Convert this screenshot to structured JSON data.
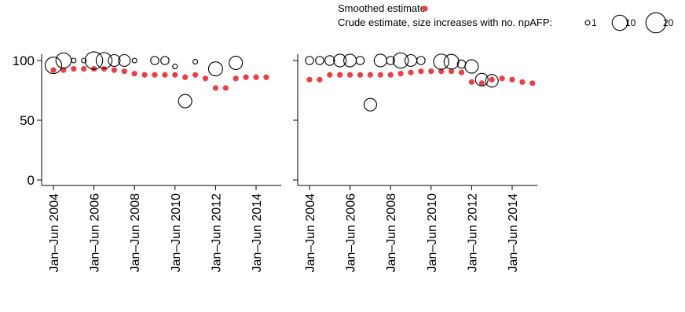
{
  "legend": {
    "smoothed_label": "Smoothed estimate",
    "crude_label": "Crude estimate, size increases with no. npAFP:",
    "size_labels": [
      "1",
      "10",
      "20"
    ],
    "size_values": [
      1,
      10,
      20
    ]
  },
  "colors": {
    "smoothed": "#ef3e42",
    "crude_stroke": "#000000"
  },
  "chart_data": [
    {
      "type": "scatter",
      "panel": "left",
      "x_tick_labels": [
        "Jan–Jun 2004",
        "Jan–Jun 2006",
        "Jan–Jun 2008",
        "Jan–Jun 2010",
        "Jan–Jun 2012",
        "Jan–Jun 2014"
      ],
      "y_tick_labels": [
        "0",
        "50",
        "100"
      ],
      "ylim": [
        0,
        100
      ],
      "xlim": [
        "Jan–Jun 2004",
        "Jul–Dec 2014"
      ],
      "grid": false,
      "series": [
        {
          "name": "Smoothed estimate",
          "points": [
            {
              "x": "Jan–Jun 2004",
              "y": 92
            },
            {
              "x": "Jul–Dec 2004",
              "y": 92
            },
            {
              "x": "Jan–Jun 2005",
              "y": 93
            },
            {
              "x": "Jul–Dec 2005",
              "y": 93
            },
            {
              "x": "Jan–Jun 2006",
              "y": 93
            },
            {
              "x": "Jul–Dec 2006",
              "y": 93
            },
            {
              "x": "Jan–Jun 2007",
              "y": 92
            },
            {
              "x": "Jul–Dec 2007",
              "y": 91
            },
            {
              "x": "Jan–Jun 2008",
              "y": 89
            },
            {
              "x": "Jul–Dec 2008",
              "y": 88
            },
            {
              "x": "Jan–Jun 2009",
              "y": 88
            },
            {
              "x": "Jul–Dec 2009",
              "y": 88
            },
            {
              "x": "Jan–Jun 2010",
              "y": 88
            },
            {
              "x": "Jul–Dec 2010",
              "y": 86
            },
            {
              "x": "Jan–Jun 2011",
              "y": 88
            },
            {
              "x": "Jul–Dec 2011",
              "y": 85
            },
            {
              "x": "Jan–Jun 2012",
              "y": 77
            },
            {
              "x": "Jul–Dec 2012",
              "y": 77
            },
            {
              "x": "Jan–Jun 2013",
              "y": 85
            },
            {
              "x": "Jul–Dec 2013",
              "y": 86
            },
            {
              "x": "Jan–Jun 2014",
              "y": 86
            },
            {
              "x": "Jul–Dec 2014",
              "y": 86
            }
          ]
        },
        {
          "name": "Crude estimate",
          "points": [
            {
              "x": "Jan–Jun 2004",
              "y": 96,
              "n": 12
            },
            {
              "x": "Jul–Dec 2004",
              "y": 100,
              "n": 10
            },
            {
              "x": "Jan–Jun 2005",
              "y": 100,
              "n": 1
            },
            {
              "x": "Jul–Dec 2005",
              "y": 100,
              "n": 1
            },
            {
              "x": "Jan–Jun 2006",
              "y": 100,
              "n": 14
            },
            {
              "x": "Jul–Dec 2006",
              "y": 100,
              "n": 11
            },
            {
              "x": "Jan–Jun 2007",
              "y": 100,
              "n": 5
            },
            {
              "x": "Jul–Dec 2007",
              "y": 100,
              "n": 5
            },
            {
              "x": "Jan–Jun 2008",
              "y": 100,
              "n": 1
            },
            {
              "x": "Jan–Jun 2009",
              "y": 100,
              "n": 2
            },
            {
              "x": "Jul–Dec 2009",
              "y": 100,
              "n": 2
            },
            {
              "x": "Jan–Jun 2010",
              "y": 95,
              "n": 1
            },
            {
              "x": "Jul–Dec 2010",
              "y": 66,
              "n": 7
            },
            {
              "x": "Jan–Jun 2011",
              "y": 99,
              "n": 1
            },
            {
              "x": "Jan–Jun 2012",
              "y": 93,
              "n": 8
            },
            {
              "x": "Jan–Jun 2013",
              "y": 98,
              "n": 7
            }
          ]
        }
      ]
    },
    {
      "type": "scatter",
      "panel": "right",
      "x_tick_labels": [
        "Jan–Jun 2004",
        "Jan–Jun 2006",
        "Jan–Jun 2008",
        "Jan–Jun 2010",
        "Jan–Jun 2012",
        "Jan–Jun 2014"
      ],
      "ylim": [
        0,
        100
      ],
      "xlim": [
        "Jan–Jun 2004",
        "Jul–Dec 2014"
      ],
      "grid": false,
      "series": [
        {
          "name": "Smoothed estimate",
          "points": [
            {
              "x": "Jan–Jun 2004",
              "y": 84
            },
            {
              "x": "Jul–Dec 2004",
              "y": 84
            },
            {
              "x": "Jan–Jun 2005",
              "y": 88
            },
            {
              "x": "Jul–Dec 2005",
              "y": 88
            },
            {
              "x": "Jan–Jun 2006",
              "y": 88
            },
            {
              "x": "Jul–Dec 2006",
              "y": 88
            },
            {
              "x": "Jan–Jun 2007",
              "y": 88
            },
            {
              "x": "Jul–Dec 2007",
              "y": 88
            },
            {
              "x": "Jan–Jun 2008",
              "y": 88
            },
            {
              "x": "Jul–Dec 2008",
              "y": 89
            },
            {
              "x": "Jan–Jun 2009",
              "y": 90
            },
            {
              "x": "Jul–Dec 2009",
              "y": 91
            },
            {
              "x": "Jan–Jun 2010",
              "y": 91
            },
            {
              "x": "Jul–Dec 2010",
              "y": 91
            },
            {
              "x": "Jan–Jun 2011",
              "y": 91
            },
            {
              "x": "Jul–Dec 2011",
              "y": 90
            },
            {
              "x": "Jan–Jun 2012",
              "y": 82
            },
            {
              "x": "Jul–Dec 2012",
              "y": 81
            },
            {
              "x": "Jan–Jun 2013",
              "y": 84
            },
            {
              "x": "Jul–Dec 2013",
              "y": 85
            },
            {
              "x": "Jan–Jun 2014",
              "y": 84
            },
            {
              "x": "Jul–Dec 2014",
              "y": 82
            },
            {
              "x": "Jan–Jun 2015",
              "y": 81
            }
          ]
        },
        {
          "name": "Crude estimate",
          "points": [
            {
              "x": "Jan–Jun 2004",
              "y": 100,
              "n": 2
            },
            {
              "x": "Jul–Dec 2004",
              "y": 100,
              "n": 2
            },
            {
              "x": "Jan–Jun 2005",
              "y": 100,
              "n": 3
            },
            {
              "x": "Jul–Dec 2005",
              "y": 100,
              "n": 6
            },
            {
              "x": "Jan–Jun 2006",
              "y": 100,
              "n": 6
            },
            {
              "x": "Jul–Dec 2006",
              "y": 100,
              "n": 2
            },
            {
              "x": "Jan–Jun 2007",
              "y": 63,
              "n": 6
            },
            {
              "x": "Jul–Dec 2007",
              "y": 100,
              "n": 6
            },
            {
              "x": "Jan–Jun 2008",
              "y": 100,
              "n": 2
            },
            {
              "x": "Jul–Dec 2008",
              "y": 100,
              "n": 10
            },
            {
              "x": "Jan–Jun 2009",
              "y": 100,
              "n": 5
            },
            {
              "x": "Jul–Dec 2009",
              "y": 100,
              "n": 2
            },
            {
              "x": "Jul–Dec 2010",
              "y": 99,
              "n": 10
            },
            {
              "x": "Jan–Jun 2011",
              "y": 99,
              "n": 9
            },
            {
              "x": "Jul–Dec 2011",
              "y": 97,
              "n": 2
            },
            {
              "x": "Jan–Jun 2012",
              "y": 95,
              "n": 7
            },
            {
              "x": "Jul–Dec 2012",
              "y": 84,
              "n": 6
            },
            {
              "x": "Jan–Jun 2013",
              "y": 83,
              "n": 6
            }
          ]
        }
      ]
    }
  ]
}
